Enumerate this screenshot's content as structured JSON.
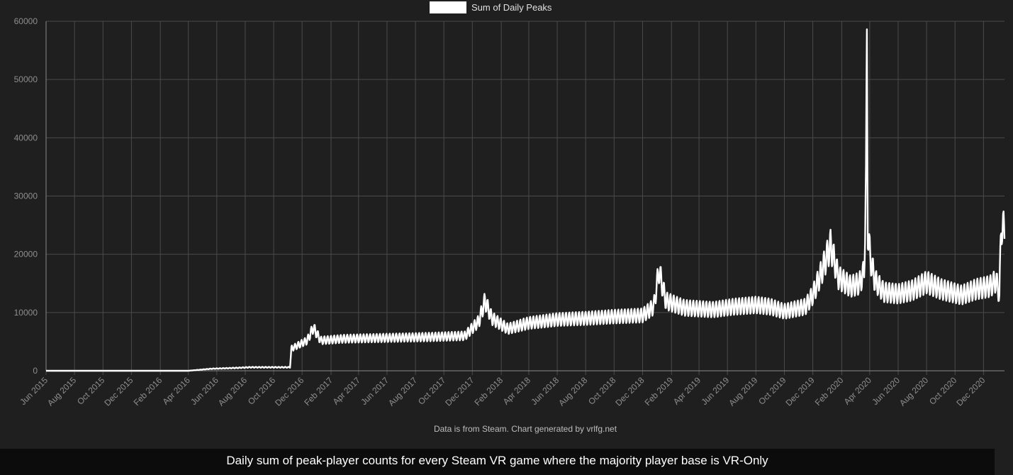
{
  "caption": "Daily sum of peak-player counts for every Steam VR game where the majority player base is VR-Only",
  "footnote": "Data is from Steam.  Chart generated by vrlfg.net",
  "chart_data": {
    "type": "line",
    "title": "",
    "xlabel": "",
    "ylabel": "",
    "ylim": [
      0,
      60000
    ],
    "y_ticks": [
      "0",
      "10000",
      "20000",
      "30000",
      "40000",
      "50000",
      "60000"
    ],
    "x_ticks": [
      "Jun 2015",
      "Aug 2015",
      "Oct 2015",
      "Dec 2015",
      "Feb 2016",
      "Apr 2016",
      "Jun 2016",
      "Aug 2016",
      "Oct 2016",
      "Dec 2016",
      "Feb 2017",
      "Apr 2017",
      "Jun 2017",
      "Aug 2017",
      "Oct 2017",
      "Dec 2017",
      "Feb 2018",
      "Apr 2018",
      "Jun 2018",
      "Aug 2018",
      "Oct 2018",
      "Dec 2018",
      "Feb 2019",
      "Apr 2019",
      "Jun 2019",
      "Aug 2019",
      "Oct 2019",
      "Dec 2019",
      "Feb 2020",
      "Apr 2020",
      "Jun 2020",
      "Aug 2020",
      "Oct 2020",
      "Dec 2020"
    ],
    "x_start": "2015-06-01",
    "x_end": "2021-01-15",
    "grid": true,
    "legend": "top-center",
    "line_color": "#ffffff",
    "series": [
      {
        "name": "Sum of Daily Peaks",
        "x": [
          "2015-06-01",
          "2016-04-01",
          "2016-05-20",
          "2016-07-15",
          "2016-08-10",
          "2016-10-01",
          "2016-11-05",
          "2016-11-08",
          "2016-11-25",
          "2016-12-12",
          "2016-12-25",
          "2017-01-10",
          "2017-03-01",
          "2017-05-01",
          "2017-07-01",
          "2017-09-01",
          "2017-11-15",
          "2017-12-15",
          "2017-12-28",
          "2018-01-12",
          "2018-02-15",
          "2018-04-01",
          "2018-06-01",
          "2018-08-01",
          "2018-10-01",
          "2018-12-01",
          "2018-12-25",
          "2019-01-05",
          "2019-01-20",
          "2019-03-01",
          "2019-05-01",
          "2019-06-15",
          "2019-08-01",
          "2019-09-01",
          "2019-10-01",
          "2019-11-15",
          "2019-12-01",
          "2019-12-20",
          "2020-01-08",
          "2020-01-25",
          "2020-02-20",
          "2020-03-10",
          "2020-03-20",
          "2020-03-24",
          "2020-03-26",
          "2020-03-28",
          "2020-04-02",
          "2020-04-12",
          "2020-05-01",
          "2020-06-01",
          "2020-07-01",
          "2020-08-01",
          "2020-09-01",
          "2020-10-15",
          "2020-11-15",
          "2020-12-15",
          "2020-12-28",
          "2021-01-04",
          "2021-01-08",
          "2021-01-15"
        ],
        "values": [
          0,
          0,
          350,
          500,
          600,
          600,
          600,
          3800,
          4500,
          5200,
          7400,
          5200,
          5500,
          5600,
          5700,
          5800,
          6000,
          8500,
          12000,
          9000,
          7200,
          8200,
          8800,
          9000,
          9300,
          9500,
          11000,
          17200,
          12000,
          10800,
          10500,
          11000,
          11300,
          11000,
          10200,
          11000,
          13000,
          17000,
          21500,
          16000,
          14500,
          15000,
          17000,
          32000,
          55500,
          24000,
          19500,
          15500,
          13500,
          13200,
          13800,
          15200,
          14000,
          13000,
          14000,
          14500,
          15500,
          13000,
          25000,
          24000
        ]
      }
    ]
  }
}
